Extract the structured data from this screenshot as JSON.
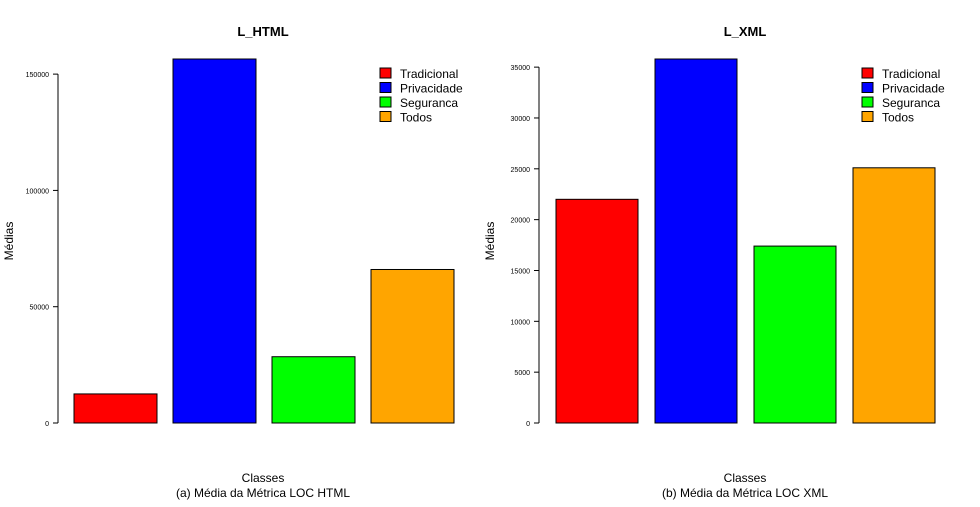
{
  "chart_data": [
    {
      "type": "bar",
      "title": "L_HTML",
      "xlabel": "Classes",
      "ylabel": "Médias",
      "caption": "(a) Média da Métrica LOC HTML",
      "categories": [
        "Tradicional",
        "Privacidade",
        "Seguranca",
        "Todos"
      ],
      "values": [
        12500,
        156500,
        28500,
        66000
      ],
      "colors": [
        "#FF0000",
        "#0000FF",
        "#00FF00",
        "#FFA500"
      ],
      "yticks": [
        0,
        50000,
        100000,
        150000
      ],
      "ylim": [
        0,
        156500
      ],
      "legend": {
        "position": "top-right",
        "labels": [
          "Tradicional",
          "Privacidade",
          "Seguranca",
          "Todos"
        ]
      }
    },
    {
      "type": "bar",
      "title": "L_XML",
      "xlabel": "Classes",
      "ylabel": "Médias",
      "caption": "(b) Média da Métrica LOC XML",
      "categories": [
        "Tradicional",
        "Privacidade",
        "Seguranca",
        "Todos"
      ],
      "values": [
        22000,
        35800,
        17400,
        25100
      ],
      "colors": [
        "#FF0000",
        "#0000FF",
        "#00FF00",
        "#FFA500"
      ],
      "yticks": [
        0,
        5000,
        10000,
        15000,
        20000,
        25000,
        30000,
        35000
      ],
      "ylim": [
        0,
        35800
      ],
      "legend": {
        "position": "top-right",
        "labels": [
          "Tradicional",
          "Privacidade",
          "Seguranca",
          "Todos"
        ]
      }
    }
  ]
}
